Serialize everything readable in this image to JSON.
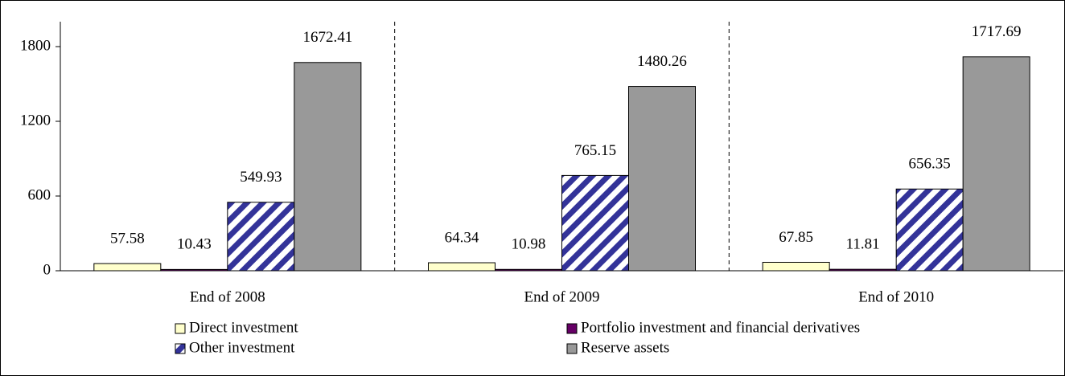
{
  "chart_data": {
    "type": "bar",
    "categories": [
      "End of 2008",
      "End of 2009",
      "End of 2010"
    ],
    "series": [
      {
        "name": "Direct investment",
        "color": "#ffffcc",
        "values": [
          57.58,
          64.34,
          67.85
        ]
      },
      {
        "name": "Portfolio investment and financial derivatives",
        "color": "#660066",
        "values": [
          10.43,
          10.98,
          11.81
        ]
      },
      {
        "name": "Other investment",
        "color": "#333399",
        "pattern": "hatch",
        "values": [
          549.93,
          765.15,
          656.35
        ]
      },
      {
        "name": "Reserve assets",
        "color": "#999999",
        "values": [
          1672.41,
          1480.26,
          1717.69
        ]
      }
    ],
    "ylim": [
      0,
      2000
    ],
    "yticks": [
      0,
      600,
      1200,
      1800
    ]
  }
}
